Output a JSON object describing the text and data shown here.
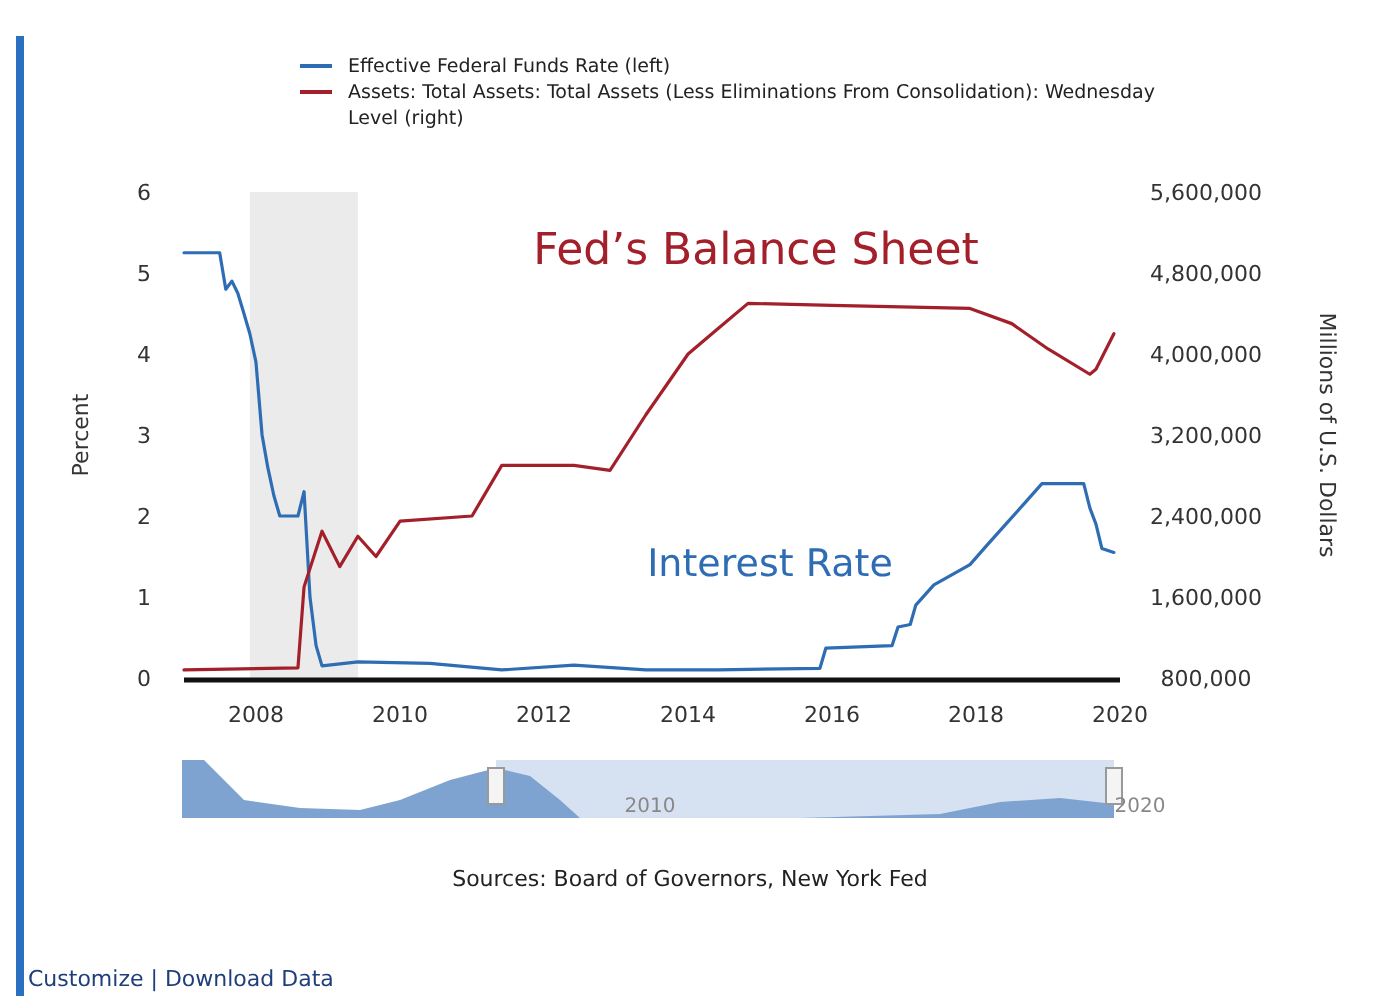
{
  "chart_data": {
    "type": "line",
    "ylabel": "Percent",
    "y2label": "Millions of U.S. Dollars",
    "annotations": [
      "Fed’s Balance Sheet",
      "Interest Rate",
      "Sources: Board of Governors, New York Fed",
      "2010",
      "2020",
      "Customize  |  Download Data"
    ],
    "legend": "top",
    "marker": "none",
    "line_style": "solid",
    "grid": false,
    "xlim": [
      "2007-01",
      "2020-01"
    ],
    "xticks": [
      "2008",
      "2010",
      "2012",
      "2014",
      "2016",
      "2018",
      "2020"
    ],
    "ylim": [
      0,
      6
    ],
    "yticks": [
      0,
      1,
      2,
      3,
      4,
      5,
      6
    ],
    "y2lim": [
      800000,
      5600000
    ],
    "y2ticks": [
      {
        "value": 800000,
        "label": "800,000"
      },
      {
        "value": 1600000,
        "label": "1,600,000"
      },
      {
        "value": 2400000,
        "label": "2,400,000"
      },
      {
        "value": 3200000,
        "label": "3,200,000"
      },
      {
        "value": 4000000,
        "label": "4,000,000"
      },
      {
        "value": 4800000,
        "label": "4,800,000"
      },
      {
        "value": 5600000,
        "label": "5,600,000"
      }
    ],
    "bands": [
      {
        "axis": "x",
        "from": "2007-12",
        "to": "2009-06",
        "color": "#ebebeb"
      }
    ],
    "series": [
      {
        "name": "Effective Federal Funds Rate (left)",
        "color": "#2e6db4",
        "x": [
          "2007-01",
          "2007-07",
          "2007-08",
          "2007-09",
          "2007-10",
          "2007-11",
          "2007-12",
          "2008-01",
          "2008-02",
          "2008-03",
          "2008-04",
          "2008-05",
          "2008-08",
          "2008-09",
          "2008-10",
          "2008-11",
          "2008-12",
          "2009-06",
          "2010-06",
          "2011-06",
          "2012-06",
          "2013-06",
          "2014-06",
          "2015-11",
          "2015-12",
          "2016-11",
          "2016-12",
          "2017-02",
          "2017-03",
          "2017-06",
          "2017-12",
          "2018-03",
          "2018-06",
          "2018-09",
          "2018-12",
          "2019-07",
          "2019-08",
          "2019-09",
          "2019-10",
          "2019-12"
        ],
        "values": [
          5.25,
          5.25,
          4.8,
          4.9,
          4.75,
          4.5,
          4.25,
          3.9,
          3.0,
          2.6,
          2.25,
          2.0,
          2.0,
          2.3,
          1.0,
          0.4,
          0.15,
          0.2,
          0.18,
          0.1,
          0.16,
          0.1,
          0.1,
          0.12,
          0.37,
          0.4,
          0.63,
          0.66,
          0.9,
          1.15,
          1.4,
          1.65,
          1.9,
          2.15,
          2.4,
          2.4,
          2.1,
          1.9,
          1.6,
          1.55
        ]
      },
      {
        "name": "Assets: Total Assets: Total Assets (Less Eliminations From Consolidation): Wednesday Level (right)",
        "color": "#a3202b",
        "axis": "y2",
        "x": [
          "2007-01",
          "2008-08",
          "2008-09",
          "2008-12",
          "2009-03",
          "2009-06",
          "2009-09",
          "2010-01",
          "2011-01",
          "2011-06",
          "2012-06",
          "2012-12",
          "2013-06",
          "2014-01",
          "2014-06",
          "2014-11",
          "2016-01",
          "2017-12",
          "2018-07",
          "2019-01",
          "2019-08",
          "2019-09",
          "2019-12"
        ],
        "values": [
          880000,
          900000,
          1700000,
          2250000,
          1900000,
          2200000,
          2000000,
          2350000,
          2400000,
          2900000,
          2900000,
          2850000,
          3400000,
          4000000,
          4250000,
          4500000,
          4480000,
          4450000,
          4300000,
          4050000,
          3800000,
          3850000,
          4200000
        ]
      }
    ]
  }
}
